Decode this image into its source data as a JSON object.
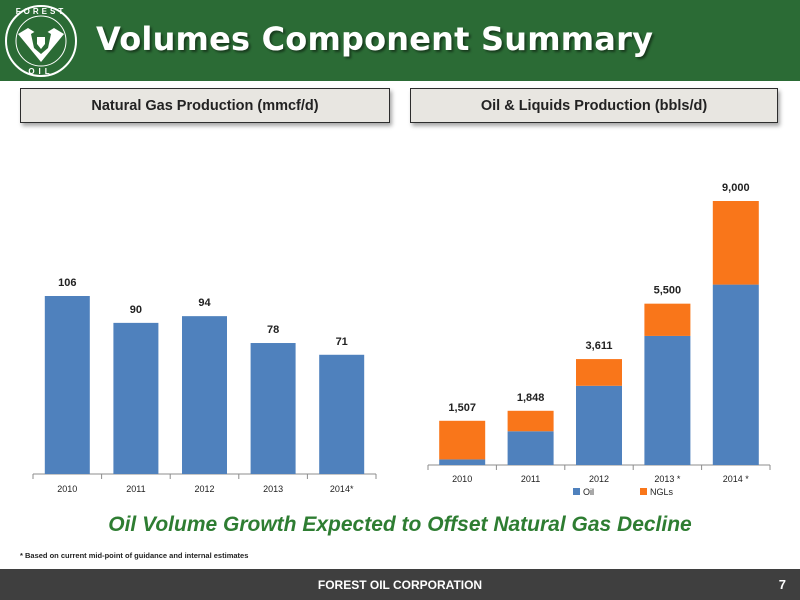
{
  "header": {
    "title": "Volumes Component Summary",
    "bg_color": "#2b6b35",
    "logo": {
      "name": "forest-oil-logo",
      "text_top": "FOREST",
      "text_bottom": "OIL"
    }
  },
  "subheads": {
    "left": "Natural Gas Production (mmcf/d)",
    "right": "Oil & Liquids Production (bbls/d)"
  },
  "chart_data": [
    {
      "type": "bar",
      "title": "Natural Gas Production (mmcf/d)",
      "categories": [
        "2010",
        "2011",
        "2012",
        "2013",
        "2014*"
      ],
      "values": [
        106,
        90,
        94,
        78,
        71
      ],
      "data_labels": [
        "106",
        "90",
        "94",
        "78",
        "71"
      ],
      "color": "#4f81bd",
      "ylim": [
        0,
        125
      ],
      "grid": false
    },
    {
      "type": "bar",
      "stacked": true,
      "title": "Oil & Liquids Production (bbls/d)",
      "categories": [
        "2010",
        "2011",
        "2012",
        "2013 *",
        "2014 *"
      ],
      "series": [
        {
          "name": "Oil",
          "values": [
            190,
            1150,
            2700,
            4400,
            6150
          ],
          "color": "#4f81bd"
        },
        {
          "name": "NGLs",
          "values": [
            1317,
            698,
            911,
            1100,
            2850
          ],
          "color": "#f9761a"
        }
      ],
      "totals": [
        "1,507",
        "1,848",
        "3,611",
        "5,500",
        "9,000"
      ],
      "ylim": [
        0,
        10000
      ],
      "legend": "bottom",
      "grid": false
    }
  ],
  "tagline": "Oil Volume Growth Expected to Offset Natural Gas Decline",
  "footnote": "* Based on current mid-point of guidance and internal estimates",
  "footer": {
    "company": "FOREST OIL CORPORATION",
    "page": "7"
  }
}
